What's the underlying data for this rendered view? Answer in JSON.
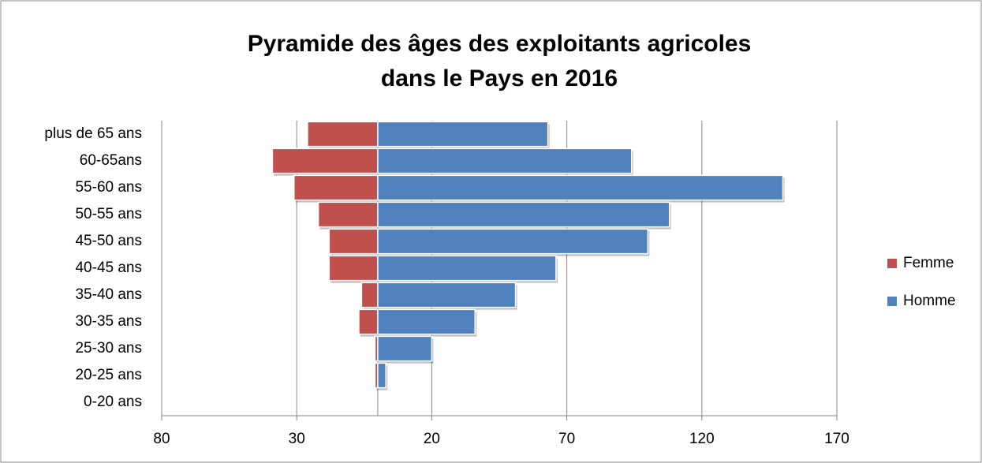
{
  "chart_data": {
    "type": "bar",
    "orientation": "horizontal",
    "stacked": true,
    "title": [
      "Pyramide des âges des exploitants agricoles",
      "dans le Pays en 2016"
    ],
    "categories": [
      "plus de 65 ans",
      "60-65ans",
      "55-60 ans",
      "50-55 ans",
      "45-50 ans",
      "40-45 ans",
      "35-40 ans",
      "30-35 ans",
      "25-30 ans",
      "20-25 ans",
      "0-20 ans"
    ],
    "series": [
      {
        "name": "Femme",
        "color": "#c0504d",
        "values": [
          -26,
          -39,
          -31,
          -22,
          -18,
          -18,
          -6,
          -7,
          -1,
          -1,
          0
        ]
      },
      {
        "name": "Homme",
        "color": "#4f81bd",
        "values": [
          63,
          94,
          150,
          108,
          100,
          66,
          51,
          36,
          20,
          3,
          0
        ]
      }
    ],
    "xlim": [
      -80,
      170
    ],
    "xticks": [
      {
        "value": -80,
        "label": "80"
      },
      {
        "value": -30,
        "label": "30"
      },
      20,
      70,
      120,
      170
    ],
    "grid": true,
    "legend": "right"
  }
}
